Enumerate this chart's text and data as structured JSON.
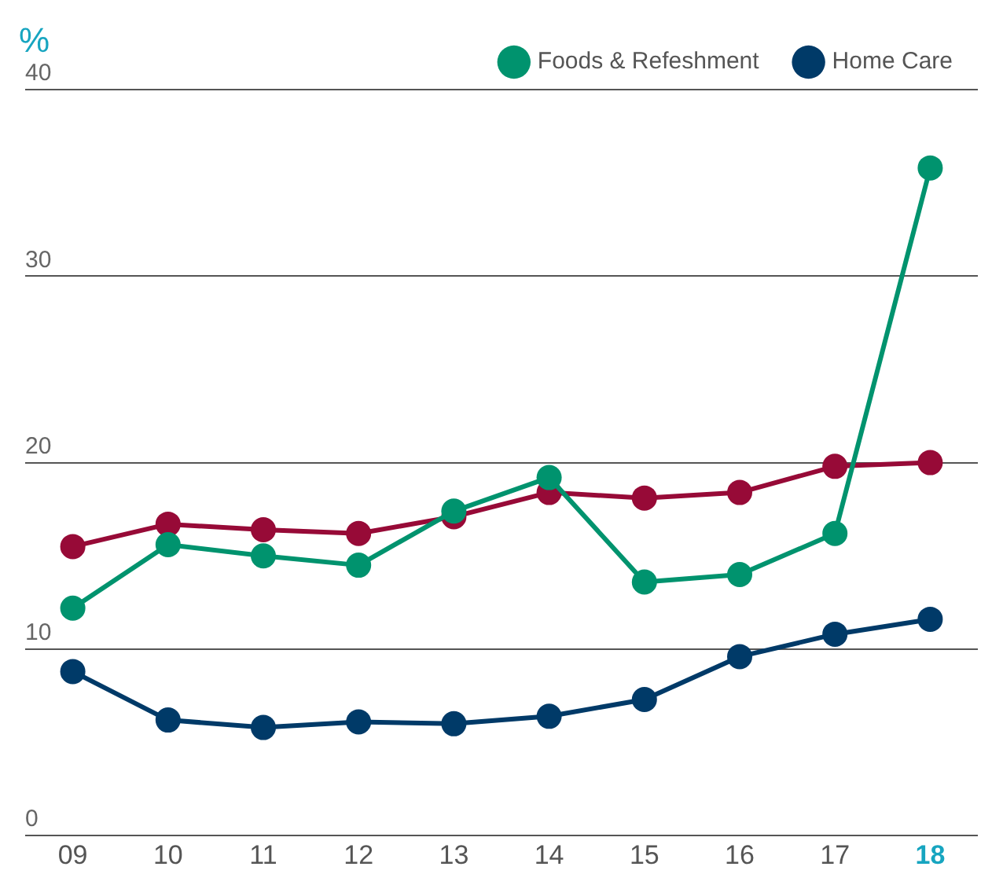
{
  "chart_data": {
    "type": "line",
    "ylabel": "%",
    "categories": [
      "09",
      "10",
      "11",
      "12",
      "13",
      "14",
      "15",
      "16",
      "17",
      "18"
    ],
    "series": [
      {
        "color": "#970a37",
        "values": [
          15.5,
          16.7,
          16.4,
          16.2,
          17.1,
          18.4,
          18.1,
          18.4,
          19.8,
          20.0
        ]
      },
      {
        "name": "Foods & Refeshment",
        "color": "#00936e",
        "values": [
          12.2,
          15.6,
          15.0,
          14.5,
          17.4,
          19.2,
          13.6,
          14.0,
          16.2,
          35.8
        ]
      },
      {
        "name": "Home Care",
        "color": "#003a68",
        "values": [
          8.8,
          6.2,
          5.8,
          6.1,
          6.0,
          6.4,
          7.3,
          9.6,
          10.8,
          11.6
        ]
      }
    ],
    "ylim": [
      0,
      40
    ],
    "yticks": [
      0,
      10,
      20,
      30,
      40
    ],
    "grid": "y",
    "legend": "top right",
    "marker": "circle",
    "line_style": "solid"
  }
}
